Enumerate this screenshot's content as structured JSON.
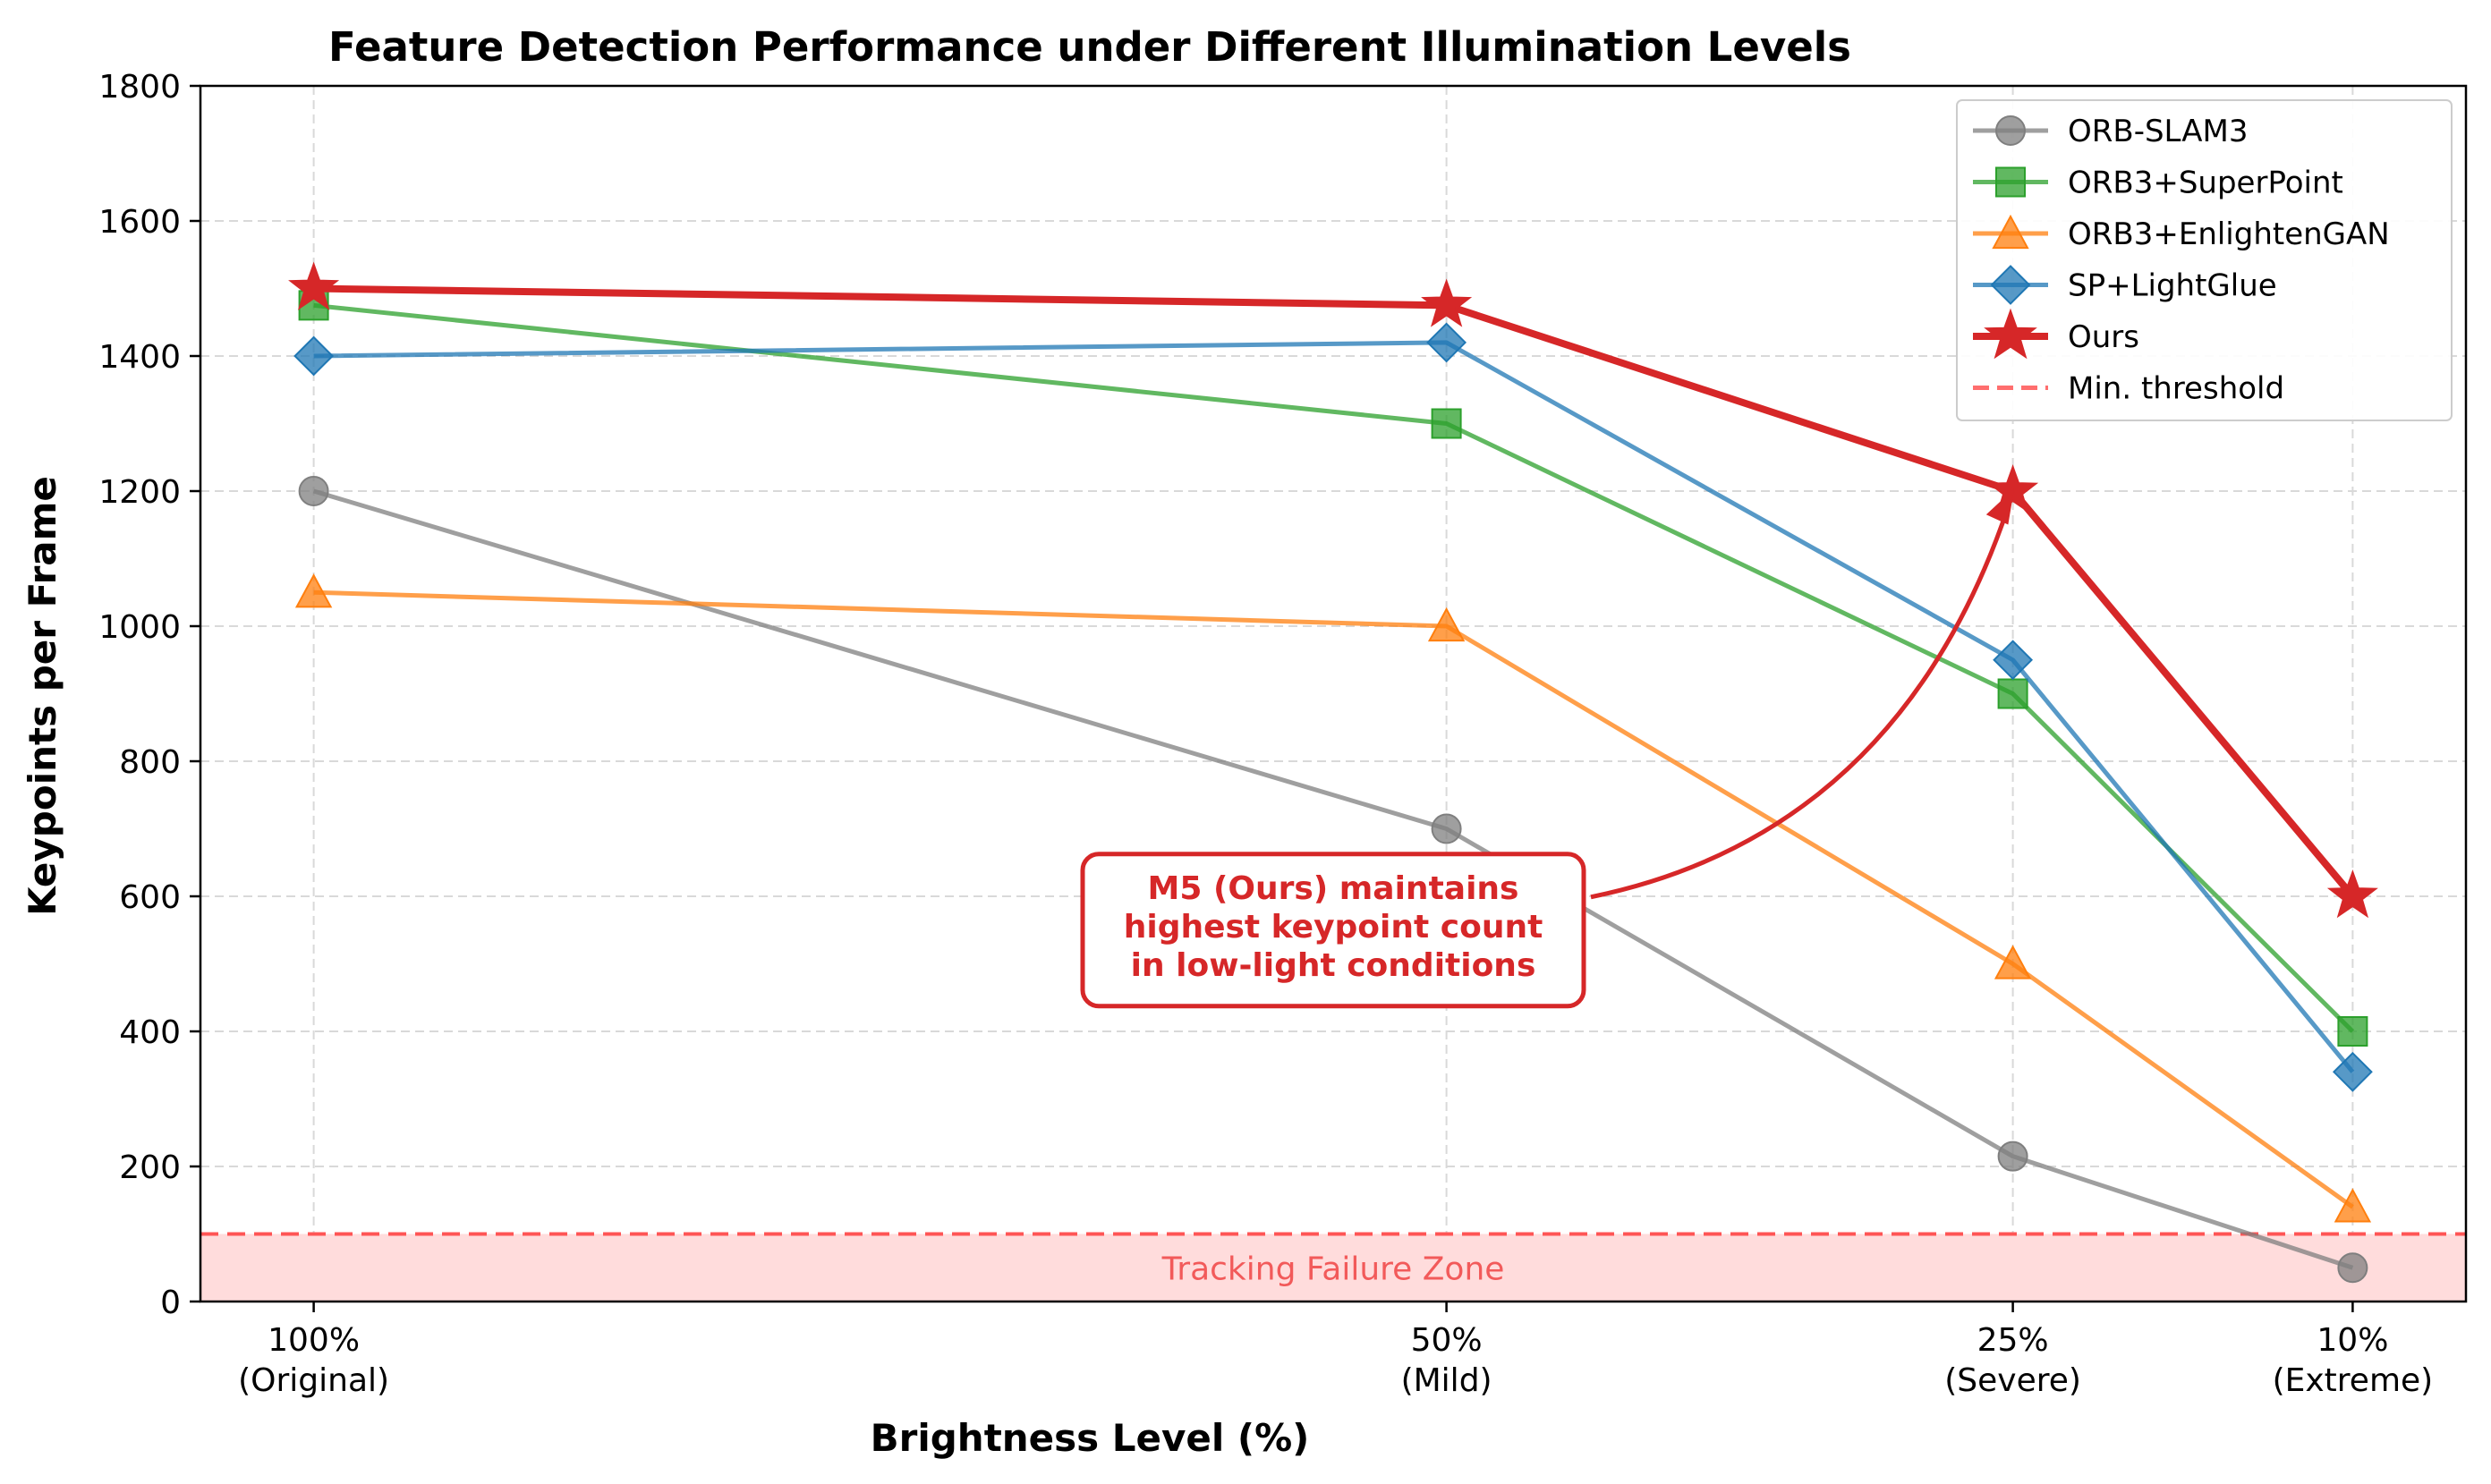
{
  "chart_data": {
    "type": "line",
    "title": "Feature Detection Performance under Different Illumination Levels",
    "xlabel": "Brightness Level (%)",
    "ylabel": "Keypoints per Frame",
    "categories": [
      {
        "pct": "100%",
        "desc": "(Original)",
        "pos": 100
      },
      {
        "pct": "50%",
        "desc": "(Mild)",
        "pos": 50
      },
      {
        "pct": "25%",
        "desc": "(Severe)",
        "pos": 25
      },
      {
        "pct": "10%",
        "desc": "(Extreme)",
        "pos": 10
      }
    ],
    "xlim": [
      105,
      5
    ],
    "ylim": [
      0,
      1800
    ],
    "yticks": [
      0,
      200,
      400,
      600,
      800,
      1000,
      1200,
      1400,
      1600,
      1800
    ],
    "grid": true,
    "legend_position": "top-right",
    "series": [
      {
        "name": "ORB-SLAM3",
        "values": [
          1200,
          700,
          215,
          50
        ],
        "color": "#7f7f7f",
        "marker": "circle"
      },
      {
        "name": "ORB3+SuperPoint",
        "values": [
          1475,
          1300,
          900,
          400
        ],
        "color": "#2ca02c",
        "marker": "square"
      },
      {
        "name": "ORB3+EnlightenGAN",
        "values": [
          1050,
          1000,
          500,
          140
        ],
        "color": "#ff7f0e",
        "marker": "triangle"
      },
      {
        "name": "SP+LightGlue",
        "values": [
          1400,
          1420,
          950,
          340
        ],
        "color": "#1f77b4",
        "marker": "diamond"
      },
      {
        "name": "Ours",
        "values": [
          1500,
          1475,
          1200,
          600
        ],
        "color": "#d62728",
        "marker": "star"
      }
    ],
    "threshold": {
      "name": "Min. threshold",
      "value": 100,
      "color": "#ff5555"
    },
    "failure_zone_label": "Tracking Failure Zone",
    "annotation": {
      "lines": [
        "M5 (Ours) maintains",
        "highest keypoint count",
        "in low-light conditions"
      ],
      "text_at": {
        "x": 55,
        "y": 550
      },
      "arrow_to": {
        "x": 25,
        "y": 1200
      },
      "color": "#d62728"
    }
  }
}
